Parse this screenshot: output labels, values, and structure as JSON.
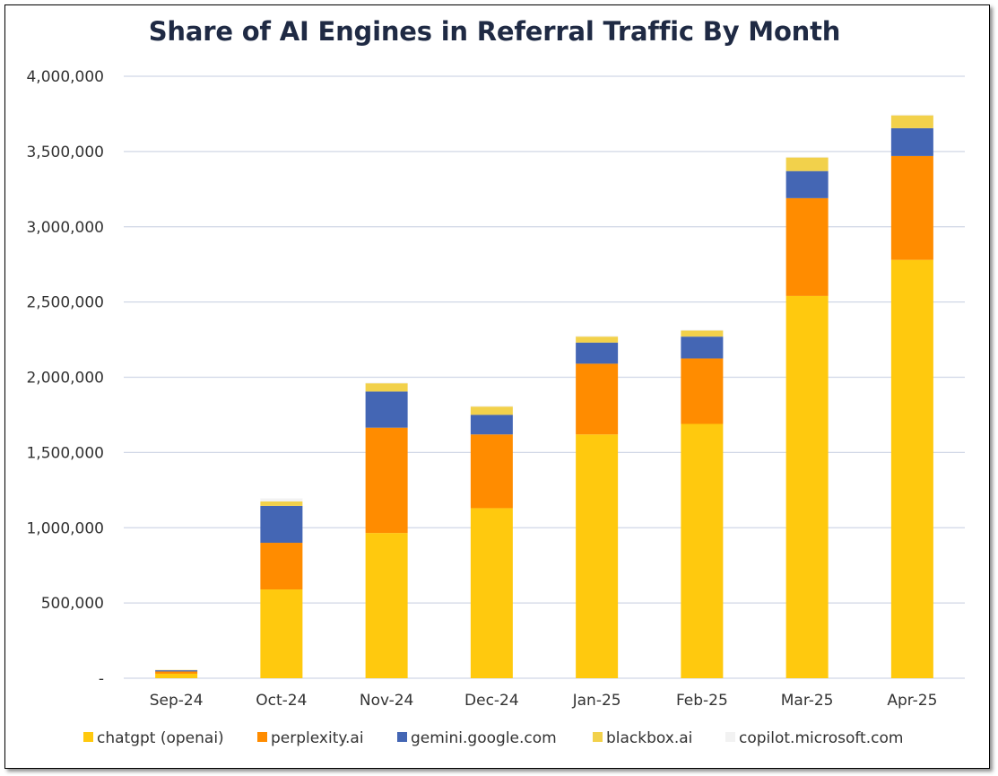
{
  "chart_data": {
    "type": "bar",
    "stacked": true,
    "title": "Share of AI Engines in Referral Traffic By Month",
    "xlabel": "",
    "ylabel": "",
    "ylim": [
      0,
      4000000
    ],
    "y_ticks": [
      "-",
      "500,000",
      "1,000,000",
      "1,500,000",
      "2,000,000",
      "2,500,000",
      "3,000,000",
      "3,500,000",
      "4,000,000"
    ],
    "grid": true,
    "legend_position": "bottom",
    "categories": [
      "Sep-24",
      "Oct-24",
      "Nov-24",
      "Dec-24",
      "Jan-25",
      "Feb-25",
      "Mar-25",
      "Apr-25"
    ],
    "series": [
      {
        "name": "chatgpt (openai)",
        "color": "#FFC90E",
        "values": [
          30000,
          590000,
          965000,
          1130000,
          1620000,
          1690000,
          2540000,
          2780000
        ]
      },
      {
        "name": "perplexity.ai",
        "color": "#FF8C00",
        "values": [
          15000,
          310000,
          700000,
          490000,
          470000,
          435000,
          650000,
          690000
        ]
      },
      {
        "name": "gemini.google.com",
        "color": "#4466B4",
        "values": [
          8000,
          245000,
          240000,
          130000,
          140000,
          145000,
          180000,
          185000
        ]
      },
      {
        "name": "blackbox.ai",
        "color": "#F2D14B",
        "values": [
          2000,
          30000,
          55000,
          55000,
          40000,
          40000,
          90000,
          85000
        ]
      },
      {
        "name": "copilot.microsoft.com",
        "color": "#F2F2F2",
        "values": [
          0,
          20000,
          5000,
          5000,
          5000,
          5000,
          5000,
          5000
        ]
      }
    ]
  }
}
